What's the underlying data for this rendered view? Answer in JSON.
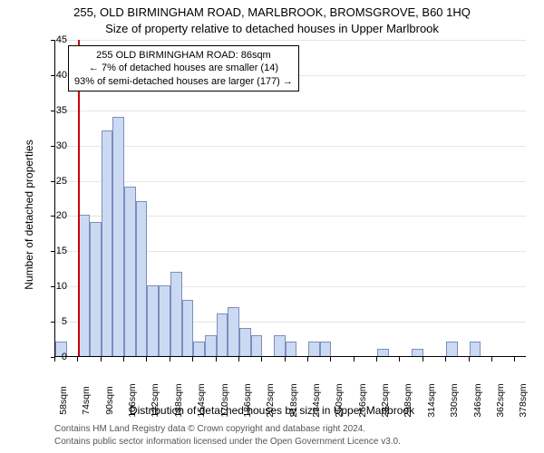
{
  "title_main": "255, OLD BIRMINGHAM ROAD, MARLBROOK, BROMSGROVE, B60 1HQ",
  "title_sub": "Size of property relative to detached houses in Upper Marlbrook",
  "ylabel": "Number of detached properties",
  "xlabel": "Distribution of detached houses by size in Upper Marlbrook",
  "footnote1": "Contains HM Land Registry data © Crown copyright and database right 2024.",
  "footnote2": "Contains public sector information licensed under the Open Government Licence v3.0.",
  "chart": {
    "type": "histogram",
    "ylim": [
      0,
      45
    ],
    "ytick_step": 5,
    "xtick_start": 58,
    "xtick_step": 16,
    "xtick_count": 21,
    "xtick_suffix": "sqm",
    "bar_fill": "#ccd9f2",
    "bar_stroke": "#7a8fbf",
    "grid_color": "#e5e5e5",
    "background": "#ffffff",
    "marker_line_color": "#cc0000",
    "marker_x_bin": 2.0,
    "bars": [
      2,
      0,
      20,
      19,
      32,
      34,
      24,
      22,
      10,
      10,
      12,
      8,
      2,
      3,
      6,
      7,
      4,
      3,
      0,
      3,
      2,
      0,
      2,
      2,
      0,
      0,
      0,
      0,
      1,
      0,
      0,
      1,
      0,
      0,
      2,
      0,
      2,
      0,
      0,
      0,
      0
    ]
  },
  "annotation": {
    "line1": "255 OLD BIRMINGHAM ROAD: 86sqm",
    "line2": "← 7% of detached houses are smaller (14)",
    "line3": "93% of semi-detached houses are larger (177) →"
  },
  "label_fontsize": 12,
  "tick_fontsize": 11,
  "title_fontsize": 13,
  "footnote_fontsize": 10
}
